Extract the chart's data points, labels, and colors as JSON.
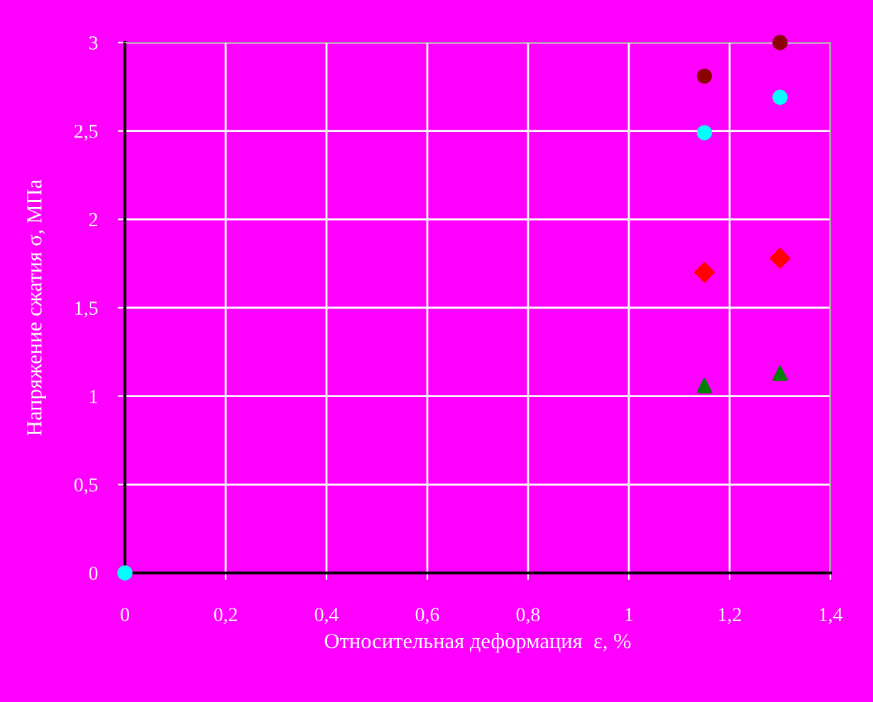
{
  "chart_data": {
    "type": "scatter",
    "xlabel": "Относительная деформация  ε, %",
    "ylabel": "Напряжение сжатия σ, МПа",
    "xlim": [
      0,
      1.4
    ],
    "ylim": [
      0,
      3
    ],
    "xticks": [
      0,
      {
        "value": 0.2,
        "label": "0,2"
      },
      {
        "value": 0.4,
        "label": "0,4"
      },
      {
        "value": 0.6,
        "label": "0,6"
      },
      {
        "value": 0.8,
        "label": "0,8"
      },
      1,
      {
        "value": 1.2,
        "label": "1,2"
      },
      {
        "value": 1.4,
        "label": "1,4"
      }
    ],
    "yticks": [
      0,
      {
        "value": 0.5,
        "label": "0,5"
      },
      1,
      {
        "value": 1.5,
        "label": "1,5"
      },
      2,
      {
        "value": 2.5,
        "label": "2,5"
      },
      3
    ],
    "grid": true,
    "legend": false,
    "series": [
      {
        "color": "#8b0000",
        "marker": "circle",
        "x": [
          1.15,
          1.3
        ],
        "values": [
          2.81,
          3.0
        ]
      },
      {
        "color": "#ff0000",
        "marker": "diamond",
        "x": [
          1.15,
          1.3
        ],
        "values": [
          1.7,
          1.78
        ]
      },
      {
        "color": "#008000",
        "marker": "triangle",
        "x": [
          1.15,
          1.3
        ],
        "values": [
          1.06,
          1.13
        ]
      },
      {
        "color": "#00ffff",
        "marker": "circle",
        "x": [
          0,
          1.15,
          1.3
        ],
        "values": [
          0,
          2.49,
          2.69
        ]
      }
    ]
  }
}
